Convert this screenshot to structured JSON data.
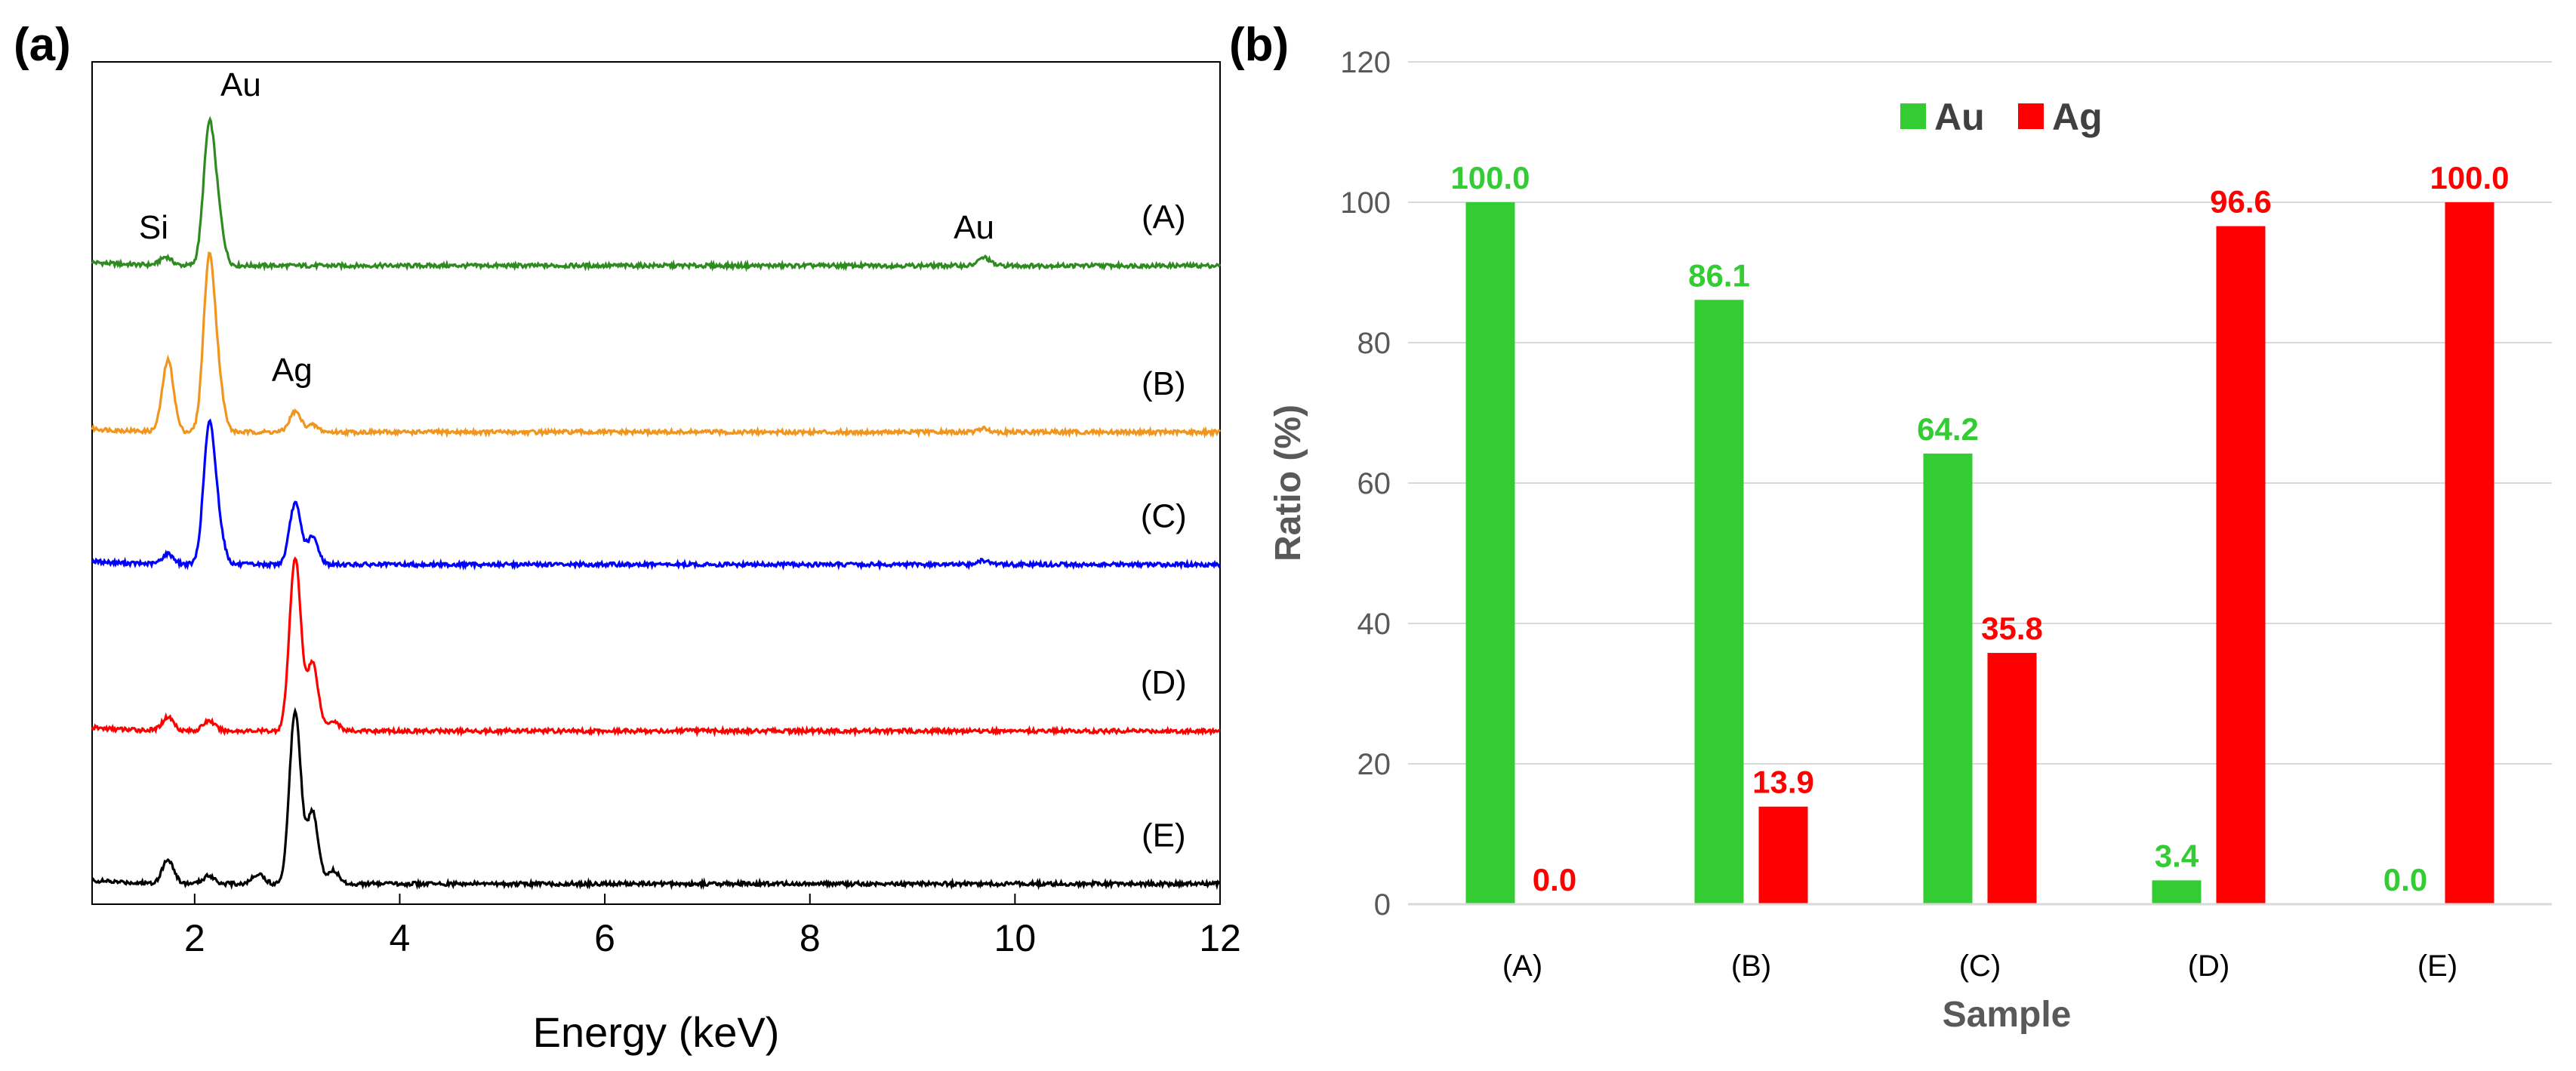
{
  "chart_data": [
    {
      "type": "line",
      "panel_label": "(a)",
      "title": "",
      "xlabel": "Energy (keV)",
      "ylabel": "",
      "xlim": [
        1,
        12
      ],
      "xticks": [
        2,
        4,
        6,
        8,
        10,
        12
      ],
      "grid": false,
      "series": [
        {
          "name": "(A)",
          "label": "(A)",
          "color": "#2e8b20",
          "baseline": 9.2,
          "peaks": [
            {
              "e": 1.72,
              "h": 0.12
            },
            {
              "e": 2.14,
              "h": 1.95
            },
            {
              "e": 2.23,
              "h": 0.6
            },
            {
              "e": 9.7,
              "h": 0.12
            }
          ]
        },
        {
          "name": "(B)",
          "label": "(B)",
          "color": "#f0961e",
          "baseline": 6.75,
          "peaks": [
            {
              "e": 1.74,
              "h": 1.05
            },
            {
              "e": 2.14,
              "h": 2.45
            },
            {
              "e": 2.23,
              "h": 0.6
            },
            {
              "e": 2.98,
              "h": 0.3
            },
            {
              "e": 3.15,
              "h": 0.1
            },
            {
              "e": 9.7,
              "h": 0.05
            }
          ]
        },
        {
          "name": "(C)",
          "label": "(C)",
          "color": "#0000ff",
          "baseline": 4.8,
          "peaks": [
            {
              "e": 1.74,
              "h": 0.15
            },
            {
              "e": 2.14,
              "h": 1.95
            },
            {
              "e": 2.23,
              "h": 0.5
            },
            {
              "e": 2.98,
              "h": 0.9
            },
            {
              "e": 3.15,
              "h": 0.4
            },
            {
              "e": 9.7,
              "h": 0.06
            }
          ]
        },
        {
          "name": "(D)",
          "label": "(D)",
          "color": "#ff0000",
          "baseline": 2.35,
          "peaks": [
            {
              "e": 1.74,
              "h": 0.2
            },
            {
              "e": 2.14,
              "h": 0.15
            },
            {
              "e": 2.98,
              "h": 2.55
            },
            {
              "e": 3.15,
              "h": 1.0
            },
            {
              "e": 3.35,
              "h": 0.15
            }
          ]
        },
        {
          "name": "(E)",
          "label": "(E)",
          "color": "#000000",
          "baseline": 0.1,
          "peaks": [
            {
              "e": 1.74,
              "h": 0.35
            },
            {
              "e": 2.14,
              "h": 0.12
            },
            {
              "e": 2.62,
              "h": 0.15
            },
            {
              "e": 2.98,
              "h": 2.55
            },
            {
              "e": 3.15,
              "h": 1.05
            },
            {
              "e": 3.35,
              "h": 0.2
            }
          ]
        }
      ],
      "annotations": [
        {
          "text": "Au",
          "e": 2.45,
          "y": 11.7
        },
        {
          "text": "Si",
          "e": 1.6,
          "y": 9.6
        },
        {
          "text": "Au",
          "e": 9.6,
          "y": 9.6
        },
        {
          "text": "Ag",
          "e": 2.95,
          "y": 7.5
        }
      ],
      "ylim": [
        -0.2,
        12.2
      ]
    },
    {
      "type": "bar",
      "panel_label": "(b)",
      "title": "",
      "xlabel": "Sample",
      "ylabel": "Ratio (%)",
      "ylim": [
        0,
        120
      ],
      "yticks": [
        0,
        20,
        40,
        60,
        80,
        100,
        120
      ],
      "grid": true,
      "legend_position": "top-center",
      "categories": [
        "(A)",
        "(B)",
        "(C)",
        "(D)",
        "(E)"
      ],
      "series": [
        {
          "name": "Au",
          "color": "#33cc33",
          "values": [
            100.0,
            86.1,
            64.2,
            3.4,
            0.0
          ],
          "labels": [
            "100.0",
            "86.1",
            "64.2",
            "3.4",
            "0.0"
          ]
        },
        {
          "name": "Ag",
          "color": "#ff0000",
          "values": [
            0.0,
            13.9,
            35.8,
            96.6,
            100.0
          ],
          "labels": [
            "0.0",
            "13.9",
            "35.8",
            "96.6",
            "100.0"
          ]
        }
      ]
    }
  ]
}
